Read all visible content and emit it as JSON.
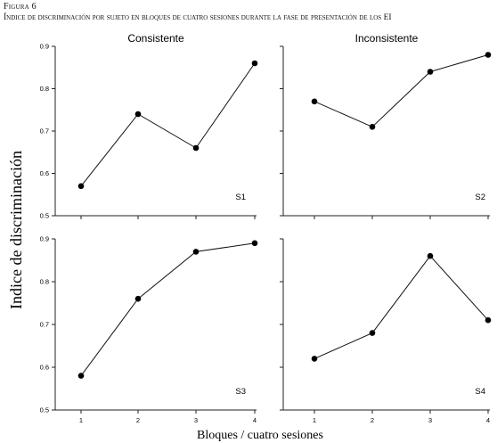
{
  "figure": {
    "label": "Figura 6",
    "caption": "Índice de discriminación por sujeto en bloques de cuatro sesiones durante la fase de presentación de los EI"
  },
  "axes": {
    "ylabel": "Indice de discriminación",
    "xlabel": "Bloques / cuatro sesiones"
  },
  "chart_data": [
    {
      "type": "line",
      "panel": "S1",
      "title": "Consistente",
      "x": [
        1,
        2,
        3,
        4
      ],
      "values": [
        0.57,
        0.74,
        0.66,
        0.86
      ],
      "ylim": [
        0.5,
        0.9
      ],
      "yticks": [
        "0.5",
        "0.6",
        "0.7",
        "0.8",
        "0.9"
      ],
      "xticks": [],
      "grid": false
    },
    {
      "type": "line",
      "panel": "S2",
      "title": "Inconsistente",
      "x": [
        1,
        2,
        3,
        4
      ],
      "values": [
        0.77,
        0.71,
        0.84,
        0.88
      ],
      "ylim": [
        0.5,
        0.9
      ],
      "yticks": [],
      "xticks": [],
      "grid": false
    },
    {
      "type": "line",
      "panel": "S3",
      "title": "",
      "x": [
        1,
        2,
        3,
        4
      ],
      "values": [
        0.58,
        0.76,
        0.87,
        0.89
      ],
      "ylim": [
        0.5,
        0.9
      ],
      "yticks": [
        "0.5",
        "0.6",
        "0.7",
        "0.8",
        "0.9"
      ],
      "xticks": [
        "1",
        "2",
        "3",
        "4"
      ],
      "grid": false
    },
    {
      "type": "line",
      "panel": "S4",
      "title": "",
      "x": [
        1,
        2,
        3,
        4
      ],
      "values": [
        0.62,
        0.68,
        0.86,
        0.71
      ],
      "ylim": [
        0.5,
        0.9
      ],
      "yticks": [],
      "xticks": [
        "1",
        "2",
        "3",
        "4"
      ],
      "grid": false
    }
  ]
}
